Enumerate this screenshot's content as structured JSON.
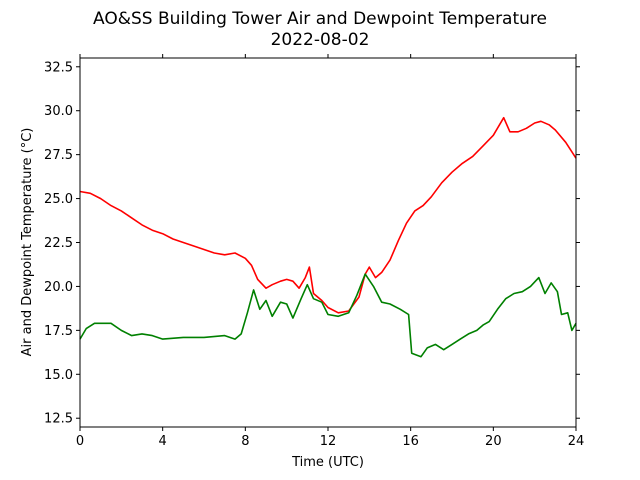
{
  "chart_data": {
    "type": "line",
    "title_line1": "AO&SS Building Tower Air and Dewpoint Temperature",
    "title_line2": "2022-08-02",
    "xlabel": "Time (UTC)",
    "ylabel": "Air and Dewpoint Temperature (°C)",
    "xlim": [
      0,
      24
    ],
    "ylim": [
      12.0,
      33.0
    ],
    "xticks": [
      0,
      4,
      8,
      12,
      16,
      20,
      24
    ],
    "xtick_labels": [
      "0",
      "4",
      "8",
      "12",
      "16",
      "20",
      "24"
    ],
    "yticks": [
      12.5,
      15.0,
      17.5,
      20.0,
      22.5,
      25.0,
      27.5,
      30.0,
      32.5
    ],
    "ytick_labels": [
      "12.5",
      "15.0",
      "17.5",
      "20.0",
      "22.5",
      "25.0",
      "27.5",
      "30.0",
      "32.5"
    ],
    "grid": false,
    "series": [
      {
        "color": "#ff0000",
        "points": [
          [
            0,
            25.4
          ],
          [
            0.5,
            25.3
          ],
          [
            1,
            25.0
          ],
          [
            1.5,
            24.6
          ],
          [
            2,
            24.3
          ],
          [
            2.5,
            23.9
          ],
          [
            3,
            23.5
          ],
          [
            3.5,
            23.2
          ],
          [
            4,
            23.0
          ],
          [
            4.5,
            22.7
          ],
          [
            5,
            22.5
          ],
          [
            5.5,
            22.3
          ],
          [
            6,
            22.1
          ],
          [
            6.5,
            21.9
          ],
          [
            7,
            21.8
          ],
          [
            7.5,
            21.9
          ],
          [
            8,
            21.6
          ],
          [
            8.3,
            21.2
          ],
          [
            8.6,
            20.4
          ],
          [
            9,
            19.9
          ],
          [
            9.3,
            20.1
          ],
          [
            9.7,
            20.3
          ],
          [
            10,
            20.4
          ],
          [
            10.3,
            20.3
          ],
          [
            10.6,
            19.9
          ],
          [
            10.9,
            20.5
          ],
          [
            11.1,
            21.1
          ],
          [
            11.3,
            19.6
          ],
          [
            11.7,
            19.2
          ],
          [
            12,
            18.8
          ],
          [
            12.5,
            18.5
          ],
          [
            13,
            18.6
          ],
          [
            13.5,
            19.4
          ],
          [
            13.8,
            20.7
          ],
          [
            14,
            21.1
          ],
          [
            14.3,
            20.5
          ],
          [
            14.6,
            20.8
          ],
          [
            15,
            21.5
          ],
          [
            15.4,
            22.6
          ],
          [
            15.8,
            23.6
          ],
          [
            16.2,
            24.3
          ],
          [
            16.6,
            24.6
          ],
          [
            17,
            25.1
          ],
          [
            17.5,
            25.9
          ],
          [
            18,
            26.5
          ],
          [
            18.5,
            27.0
          ],
          [
            19,
            27.4
          ],
          [
            19.5,
            28.0
          ],
          [
            20,
            28.6
          ],
          [
            20.3,
            29.2
          ],
          [
            20.5,
            29.6
          ],
          [
            20.8,
            28.8
          ],
          [
            21.2,
            28.8
          ],
          [
            21.6,
            29.0
          ],
          [
            22,
            29.3
          ],
          [
            22.3,
            29.4
          ],
          [
            22.7,
            29.2
          ],
          [
            23,
            28.9
          ],
          [
            23.5,
            28.2
          ],
          [
            24,
            27.3
          ]
        ]
      },
      {
        "color": "#008000",
        "points": [
          [
            0,
            17.0
          ],
          [
            0.3,
            17.6
          ],
          [
            0.7,
            17.9
          ],
          [
            1,
            17.9
          ],
          [
            1.5,
            17.9
          ],
          [
            2,
            17.5
          ],
          [
            2.5,
            17.2
          ],
          [
            3,
            17.3
          ],
          [
            3.5,
            17.2
          ],
          [
            4,
            17.0
          ],
          [
            5,
            17.1
          ],
          [
            6,
            17.1
          ],
          [
            7,
            17.2
          ],
          [
            7.5,
            17.0
          ],
          [
            7.8,
            17.3
          ],
          [
            8.1,
            18.5
          ],
          [
            8.4,
            19.8
          ],
          [
            8.7,
            18.7
          ],
          [
            9,
            19.2
          ],
          [
            9.3,
            18.3
          ],
          [
            9.7,
            19.1
          ],
          [
            10,
            19.0
          ],
          [
            10.3,
            18.2
          ],
          [
            10.7,
            19.3
          ],
          [
            11,
            20.1
          ],
          [
            11.3,
            19.3
          ],
          [
            11.7,
            19.1
          ],
          [
            12,
            18.4
          ],
          [
            12.5,
            18.3
          ],
          [
            13,
            18.5
          ],
          [
            13.4,
            19.5
          ],
          [
            13.8,
            20.7
          ],
          [
            14.2,
            20.0
          ],
          [
            14.6,
            19.1
          ],
          [
            15,
            19.0
          ],
          [
            15.5,
            18.7
          ],
          [
            15.9,
            18.4
          ],
          [
            16.05,
            16.2
          ],
          [
            16.5,
            16.0
          ],
          [
            16.8,
            16.5
          ],
          [
            17.2,
            16.7
          ],
          [
            17.6,
            16.4
          ],
          [
            18,
            16.7
          ],
          [
            18.4,
            17.0
          ],
          [
            18.8,
            17.3
          ],
          [
            19.2,
            17.5
          ],
          [
            19.5,
            17.8
          ],
          [
            19.8,
            18.0
          ],
          [
            20.2,
            18.7
          ],
          [
            20.6,
            19.3
          ],
          [
            21,
            19.6
          ],
          [
            21.4,
            19.7
          ],
          [
            21.8,
            20.0
          ],
          [
            22.2,
            20.5
          ],
          [
            22.5,
            19.6
          ],
          [
            22.8,
            20.2
          ],
          [
            23.1,
            19.7
          ],
          [
            23.3,
            18.4
          ],
          [
            23.6,
            18.5
          ],
          [
            23.8,
            17.5
          ],
          [
            24,
            17.9
          ]
        ]
      }
    ]
  }
}
